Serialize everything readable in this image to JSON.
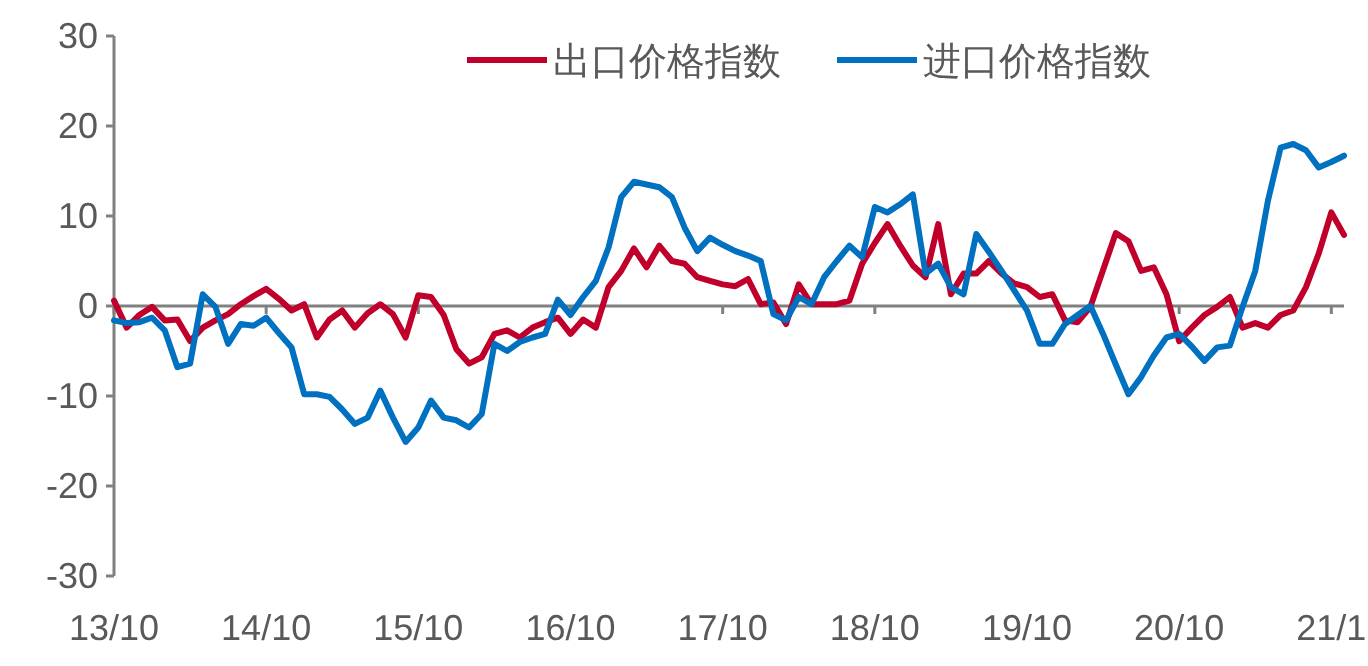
{
  "chart_data": {
    "type": "line",
    "legend": "top",
    "ylim": [
      -30,
      30
    ],
    "yticks": [
      -30,
      -20,
      -10,
      0,
      10,
      20,
      30
    ],
    "categories": [
      "13/10",
      null,
      null,
      null,
      null,
      null,
      null,
      null,
      null,
      null,
      null,
      null,
      "14/10",
      null,
      null,
      null,
      null,
      null,
      null,
      null,
      null,
      null,
      null,
      null,
      "15/10",
      null,
      null,
      null,
      null,
      null,
      null,
      null,
      null,
      null,
      null,
      null,
      "16/10",
      null,
      null,
      null,
      null,
      null,
      null,
      null,
      null,
      null,
      null,
      null,
      "17/10",
      null,
      null,
      null,
      null,
      null,
      null,
      null,
      null,
      null,
      null,
      null,
      "18/10",
      null,
      null,
      null,
      null,
      null,
      null,
      null,
      null,
      null,
      null,
      null,
      "19/10",
      null,
      null,
      null,
      null,
      null,
      null,
      null,
      null,
      null,
      null,
      null,
      "20/10",
      null,
      null,
      null,
      null,
      null,
      null,
      null,
      null,
      null,
      null,
      null,
      "21/1",
      null
    ],
    "series": [
      {
        "name": "出口价格指数",
        "color": "#c0002b",
        "values": [
          0.6,
          -2.4,
          -1.0,
          -0.1,
          -1.6,
          -1.5,
          -3.9,
          -2.4,
          -1.6,
          -0.9,
          0.2,
          1.1,
          1.9,
          0.8,
          -0.5,
          0.2,
          -3.5,
          -1.5,
          -0.5,
          -2.4,
          -0.8,
          0.2,
          -0.9,
          -3.5,
          1.2,
          1.0,
          -1.0,
          -4.8,
          -6.4,
          -5.7,
          -3.1,
          -2.7,
          -3.5,
          -2.4,
          -1.8,
          -1.3,
          -3.1,
          -1.5,
          -2.4,
          2.1,
          3.9,
          6.4,
          4.3,
          6.7,
          5.0,
          4.7,
          3.2,
          2.8,
          2.4,
          2.2,
          3.0,
          0.2,
          0.4,
          -2.0,
          2.4,
          0.2,
          0.2,
          0.2,
          0.6,
          4.7,
          7.0,
          9.1,
          6.7,
          4.5,
          3.2,
          9.1,
          1.3,
          3.6,
          3.6,
          5.0,
          3.6,
          2.5,
          2.1,
          1.0,
          1.3,
          -1.6,
          -1.8,
          -0.1,
          4.0,
          8.1,
          7.2,
          3.9,
          4.3,
          1.3,
          -3.9,
          -2.4,
          -1.0,
          -0.1,
          1.0,
          -2.4,
          -1.9,
          -2.4,
          -1.0,
          -0.5,
          2.1,
          5.8,
          10.4,
          7.9
        ]
      },
      {
        "name": "进口价格指数",
        "color": "#0070c0",
        "values": [
          -1.6,
          -1.9,
          -1.8,
          -1.3,
          -2.7,
          -6.8,
          -6.4,
          1.3,
          -0.1,
          -4.2,
          -2.0,
          -2.2,
          -1.3,
          -3.0,
          -4.6,
          -9.8,
          -9.8,
          -10.1,
          -11.5,
          -13.1,
          -12.4,
          -9.4,
          -12.4,
          -15.1,
          -13.5,
          -10.5,
          -12.4,
          -12.7,
          -13.5,
          -12.0,
          -4.2,
          -5.0,
          -4.0,
          -3.5,
          -3.1,
          0.7,
          -1.0,
          1.0,
          2.8,
          6.5,
          12.1,
          13.8,
          13.5,
          13.2,
          12.1,
          8.7,
          6.1,
          7.6,
          6.8,
          6.1,
          5.6,
          5.0,
          -0.9,
          -1.6,
          1.0,
          0.2,
          3.2,
          5.0,
          6.7,
          5.4,
          11.0,
          10.4,
          11.3,
          12.4,
          3.6,
          4.7,
          2.1,
          1.3,
          8.0,
          6.0,
          3.9,
          1.7,
          -0.5,
          -4.2,
          -4.2,
          -2.0,
          -1.0,
          0.0,
          -3.1,
          -6.5,
          -9.8,
          -7.9,
          -5.5,
          -3.5,
          -3.1,
          -4.5,
          -6.1,
          -4.6,
          -4.4,
          -0.1,
          3.9,
          11.7,
          17.6,
          18.0,
          17.3,
          15.4,
          16.0,
          16.7
        ]
      }
    ]
  }
}
